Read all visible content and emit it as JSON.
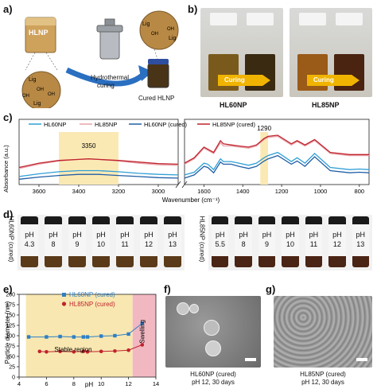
{
  "panels": {
    "a": {
      "label": "a)",
      "beaker_label": "HLNP",
      "process_label_1": "Hydrothermal",
      "process_label_2": "curing",
      "product_label": "Cured HLNP",
      "lig_labels": [
        "Lig",
        "Lig",
        "Lig",
        "Lig"
      ],
      "oh_labels": [
        "OH",
        "OH",
        "OH",
        "OH",
        "OH"
      ]
    },
    "b": {
      "label": "b)",
      "arrow_labels": [
        "Curing",
        "Curing"
      ],
      "captions": [
        "HL60NP",
        "HL85NP"
      ]
    },
    "c": {
      "label": "c)",
      "legend": [
        "HL60NP",
        "HL85NP",
        "HL60NP (cured)",
        "HL85NP (cured)"
      ],
      "colors": [
        "#2f9fd6",
        "#e8a2a8",
        "#1f5fa6",
        "#c0232e"
      ],
      "annotations": [
        "3350",
        "1290"
      ],
      "ylabel": "Absorbance (a.u.)",
      "xlabel": "Wavenumber (cm⁻¹)",
      "xticks_left": [
        "3600",
        "3400",
        "3200",
        "3000"
      ],
      "xticks_right": [
        "1600",
        "1400",
        "1200",
        "1000",
        "800"
      ]
    },
    "d": {
      "label": "d)",
      "group1": {
        "name": "HL60NP (cured)",
        "vials": [
          {
            "pH": "pH",
            "val": "4.3"
          },
          {
            "pH": "pH",
            "val": "8"
          },
          {
            "pH": "pH",
            "val": "9"
          },
          {
            "pH": "pH",
            "val": "10"
          },
          {
            "pH": "pH",
            "val": "11"
          },
          {
            "pH": "pH",
            "val": "12"
          },
          {
            "pH": "pH",
            "val": "13"
          }
        ]
      },
      "group2": {
        "name": "HL85NP (cured)",
        "vials": [
          {
            "pH": "pH",
            "val": "5.5"
          },
          {
            "pH": "pH",
            "val": "8"
          },
          {
            "pH": "pH",
            "val": "9"
          },
          {
            "pH": "pH",
            "val": "10"
          },
          {
            "pH": "pH",
            "val": "11"
          },
          {
            "pH": "pH",
            "val": "12"
          },
          {
            "pH": "pH",
            "val": "13"
          }
        ]
      }
    },
    "e": {
      "label": "e)",
      "stable_label": "Stable region",
      "swelling_label": "Swelling"
    },
    "f": {
      "label": "f)",
      "caption_1": "HL60NP (cured)",
      "caption_2": "pH 12, 30 days"
    },
    "g": {
      "label": "g)",
      "caption_1": "HL85NP (cured)",
      "caption_2": "pH 12, 30 days"
    }
  },
  "chart_data": [
    {
      "type": "line",
      "panel": "c",
      "title": "",
      "xlabel": "Wavenumber (cm⁻¹)",
      "ylabel": "Absorbance (a.u.)",
      "broken_x_axis": true,
      "xlim_left": [
        3700,
        2900
      ],
      "xlim_right": [
        1700,
        750
      ],
      "series": [
        {
          "name": "HL60NP",
          "color": "#2f9fd6",
          "left": {
            "x": [
              3700,
              3600,
              3500,
              3400,
              3350,
              3300,
              3200,
              3100,
              3000,
              2900
            ],
            "y": [
              0.27,
              0.32,
              0.36,
              0.38,
              0.38,
              0.38,
              0.36,
              0.33,
              0.31,
              0.3
            ]
          },
          "right": {
            "x": [
              1700,
              1650,
              1600,
              1580,
              1550,
              1515,
              1500,
              1460,
              1420,
              1370,
              1330,
              1290,
              1270,
              1220,
              1150,
              1120,
              1080,
              1030,
              950,
              850,
              800,
              750
            ],
            "y": [
              0.3,
              0.35,
              0.52,
              0.5,
              0.4,
              0.6,
              0.55,
              0.55,
              0.52,
              0.48,
              0.52,
              0.62,
              0.66,
              0.72,
              0.55,
              0.62,
              0.52,
              0.7,
              0.44,
              0.4,
              0.41,
              0.4
            ]
          }
        },
        {
          "name": "HL85NP",
          "color": "#e8a2a8",
          "left": {
            "x": [
              3700,
              3600,
              3500,
              3400,
              3350,
              3300,
              3200,
              3100,
              3000,
              2900
            ],
            "y": [
              0.42,
              0.5,
              0.56,
              0.59,
              0.6,
              0.59,
              0.56,
              0.52,
              0.49,
              0.48
            ]
          },
          "right": {
            "x": [
              1700,
              1650,
              1600,
              1580,
              1550,
              1515,
              1500,
              1460,
              1420,
              1370,
              1330,
              1290,
              1270,
              1220,
              1150,
              1120,
              1080,
              1030,
              950,
              850,
              800,
              750
            ],
            "y": [
              0.5,
              0.6,
              0.8,
              0.76,
              0.7,
              0.9,
              0.84,
              0.84,
              0.82,
              0.8,
              0.84,
              0.96,
              1.0,
              1.02,
              0.86,
              0.92,
              0.84,
              0.94,
              0.7,
              0.66,
              0.66,
              0.66
            ]
          }
        },
        {
          "name": "HL60NP (cured)",
          "color": "#1f5fa6",
          "left": {
            "x": [
              3700,
              3600,
              3500,
              3400,
              3350,
              3300,
              3200,
              3100,
              3000,
              2900
            ],
            "y": [
              0.22,
              0.26,
              0.29,
              0.31,
              0.31,
              0.31,
              0.29,
              0.27,
              0.25,
              0.24
            ]
          },
          "right": {
            "x": [
              1700,
              1650,
              1600,
              1580,
              1550,
              1515,
              1500,
              1460,
              1420,
              1370,
              1330,
              1290,
              1270,
              1220,
              1150,
              1120,
              1080,
              1030,
              950,
              850,
              800,
              750
            ],
            "y": [
              0.24,
              0.3,
              0.46,
              0.44,
              0.34,
              0.54,
              0.5,
              0.5,
              0.46,
              0.42,
              0.46,
              0.56,
              0.6,
              0.66,
              0.5,
              0.56,
              0.46,
              0.64,
              0.38,
              0.34,
              0.35,
              0.34
            ]
          }
        },
        {
          "name": "HL85NP (cured)",
          "color": "#c0232e",
          "left": {
            "x": [
              3700,
              3600,
              3500,
              3400,
              3350,
              3300,
              3200,
              3100,
              3000,
              2900
            ],
            "y": [
              0.44,
              0.52,
              0.57,
              0.59,
              0.6,
              0.59,
              0.57,
              0.54,
              0.51,
              0.5
            ]
          },
          "right": {
            "x": [
              1700,
              1650,
              1600,
              1580,
              1550,
              1515,
              1500,
              1460,
              1420,
              1370,
              1330,
              1290,
              1270,
              1220,
              1150,
              1120,
              1080,
              1030,
              950,
              850,
              800,
              750
            ],
            "y": [
              0.52,
              0.62,
              0.82,
              0.78,
              0.72,
              0.94,
              0.88,
              0.86,
              0.84,
              0.82,
              0.86,
              0.98,
              1.02,
              1.04,
              0.88,
              0.94,
              0.86,
              0.96,
              0.72,
              0.68,
              0.68,
              0.68
            ]
          }
        }
      ],
      "highlight_bands": [
        {
          "x": [
            3500,
            3200
          ],
          "label": "3350"
        },
        {
          "x": [
            1310,
            1270
          ],
          "label": "1290"
        }
      ]
    },
    {
      "type": "scatter",
      "panel": "e",
      "title": "",
      "xlabel": "pH",
      "ylabel": "Particle diameter (nm)",
      "xlim": [
        4,
        14
      ],
      "ylim": [
        0,
        200
      ],
      "xticks": [
        4,
        6,
        8,
        10,
        12,
        14
      ],
      "yticks": [
        0,
        25,
        50,
        75,
        100,
        125,
        150,
        175,
        200
      ],
      "regions": [
        {
          "x": [
            4.5,
            12.3
          ],
          "label": "Stable region",
          "color": "#f8e7b0"
        },
        {
          "x": [
            12.3,
            14
          ],
          "label": "Swelling",
          "color": "#f2b8c2"
        }
      ],
      "series": [
        {
          "name": "HL60NP (cured)",
          "color": "#2f7fc4",
          "marker": "square",
          "x": [
            4.7,
            6,
            7,
            8,
            8.7,
            9,
            10,
            11,
            12,
            13
          ],
          "y": [
            97,
            97,
            98,
            97,
            97,
            97,
            99,
            100,
            104,
            130
          ]
        },
        {
          "name": "HL85NP (cured)",
          "color": "#c0232e",
          "marker": "circle",
          "x": [
            5.5,
            6,
            7,
            8,
            8.7,
            9,
            10,
            11,
            12,
            13
          ],
          "y": [
            62,
            61,
            62,
            61,
            62,
            61,
            62,
            63,
            65,
            78
          ]
        }
      ]
    }
  ]
}
